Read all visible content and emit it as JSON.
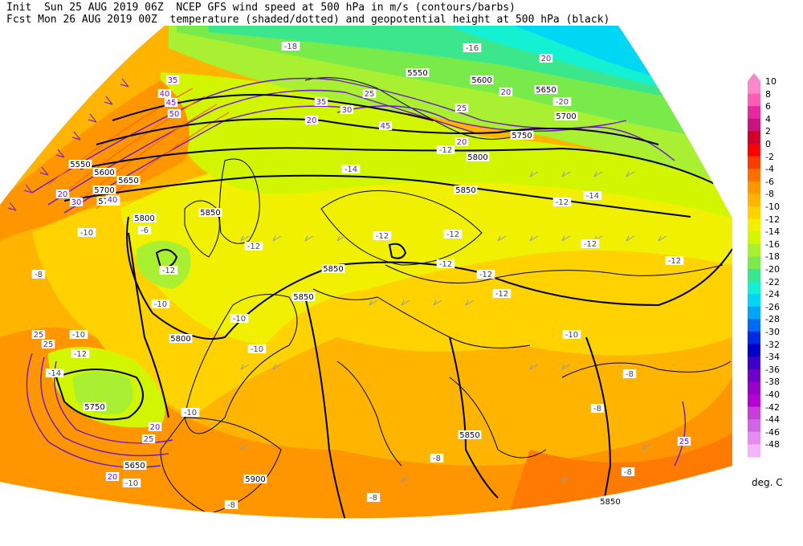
{
  "header": {
    "line1": "Init  Sun 25 AUG 2019 06Z  NCEP GFS wind speed at 500 hPa in m/s (contours/barbs)",
    "line2": "Fcst Mon 26 AUG 2019 00Z  temperature (shaded/dotted) and geopotential height at 500 hPa (black)"
  },
  "colorbar": {
    "units": "deg. C",
    "top_arrow_color": "#f08cc8",
    "levels": [
      {
        "label": "10",
        "color": "#ff88c8"
      },
      {
        "label": "8",
        "color": "#ff5cb4"
      },
      {
        "label": "6",
        "color": "#e8289c"
      },
      {
        "label": "4",
        "color": "#c8147c"
      },
      {
        "label": "2",
        "color": "#d00028"
      },
      {
        "label": "0",
        "color": "#ff0000"
      },
      {
        "label": "-2",
        "color": "#ff3c00"
      },
      {
        "label": "-4",
        "color": "#ff6e00"
      },
      {
        "label": "-6",
        "color": "#ff9600"
      },
      {
        "label": "-8",
        "color": "#ffb400"
      },
      {
        "label": "-10",
        "color": "#ffd200"
      },
      {
        "label": "-12",
        "color": "#f0f000"
      },
      {
        "label": "-14",
        "color": "#d2f500"
      },
      {
        "label": "-16",
        "color": "#aaf032"
      },
      {
        "label": "-18",
        "color": "#78eb4b"
      },
      {
        "label": "-20",
        "color": "#3ce68c"
      },
      {
        "label": "-22",
        "color": "#14f0d2"
      },
      {
        "label": "-24",
        "color": "#00d7f5"
      },
      {
        "label": "-26",
        "color": "#00a5f5"
      },
      {
        "label": "-28",
        "color": "#0069f5"
      },
      {
        "label": "-30",
        "color": "#0028e6"
      },
      {
        "label": "-32",
        "color": "#0000c8"
      },
      {
        "label": "-34",
        "color": "#3c00c8"
      },
      {
        "label": "-36",
        "color": "#6e00c8"
      },
      {
        "label": "-38",
        "color": "#9600c8"
      },
      {
        "label": "-40",
        "color": "#b400d2"
      },
      {
        "label": "-42",
        "color": "#c83cdc"
      },
      {
        "label": "-44",
        "color": "#d264e6"
      },
      {
        "label": "-46",
        "color": "#e68cf0"
      },
      {
        "label": "-48",
        "color": "#f5b4fa"
      }
    ]
  },
  "height_labels": [
    "5550",
    "5600",
    "5650",
    "5700",
    "5750",
    "5800",
    "5850",
    "5850",
    "5850",
    "5850",
    "5900",
    "5750",
    "5650",
    "5600",
    "5550",
    "5650",
    "5700",
    "5750",
    "5800",
    "5850",
    "5800",
    "5850"
  ],
  "wind_labels": [
    "20",
    "25",
    "30",
    "35",
    "40",
    "45",
    "50",
    "20",
    "25",
    "30",
    "35",
    "40",
    "45",
    "20",
    "25",
    "20",
    "25",
    "20",
    "25",
    "20",
    "20",
    "25"
  ],
  "temp_labels": [
    "-18",
    "-16",
    "-14",
    "-12",
    "-12",
    "-12",
    "-12",
    "-12",
    "-12",
    "-12",
    "-12",
    "-12",
    "-10",
    "-10",
    "-10",
    "-10",
    "-10",
    "-10",
    "-10",
    "-8",
    "-8",
    "-8",
    "-8",
    "-8",
    "-8",
    "-8",
    "-6",
    "-20",
    "-14",
    "-12",
    "-14",
    "-12",
    "-10",
    "-12"
  ]
}
